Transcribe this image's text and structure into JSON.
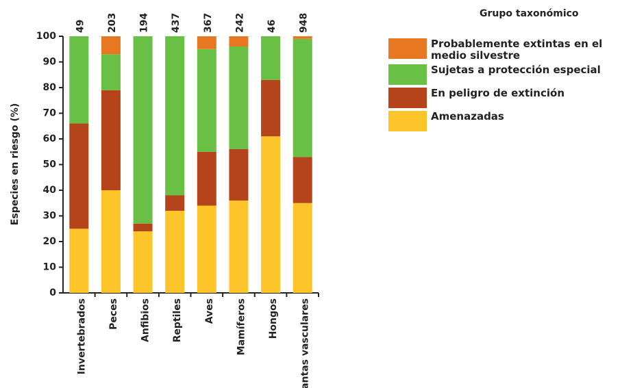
{
  "chart_data": {
    "type": "stacked_bar",
    "ylabel": "Especies en riesgo (%)",
    "legend_title": "Grupo taxonómico",
    "categories": [
      "Invertebrados",
      "Peces",
      "Anfibios",
      "Reptiles",
      "Aves",
      "Mamíferos",
      "Hongos",
      "Plantas vasculares"
    ],
    "annotations": [
      "49",
      "203",
      "194",
      "437",
      "367",
      "242",
      "46",
      "948"
    ],
    "series": [
      {
        "name": "Amenazadas",
        "color": "#fdc52a",
        "values": [
          25,
          40,
          24,
          32,
          34,
          36,
          61,
          35
        ]
      },
      {
        "name": "En peligro de extinción",
        "color": "#b5441a",
        "values": [
          41,
          39,
          3,
          6,
          21,
          20,
          22,
          18
        ]
      },
      {
        "name": "Sujetas a protección especial",
        "color": "#6abf45",
        "values": [
          34,
          14,
          73,
          62,
          40,
          40,
          17,
          46
        ]
      },
      {
        "name": "Probablemente extintas en el medio silvestre",
        "color": "#e87722",
        "values": [
          0,
          7,
          0,
          0,
          5,
          4,
          0,
          1
        ]
      }
    ],
    "ylim": [
      0,
      100
    ],
    "yticks": [
      0,
      10,
      20,
      30,
      40,
      50,
      60,
      70,
      80,
      90,
      100
    ],
    "legend": "right"
  }
}
